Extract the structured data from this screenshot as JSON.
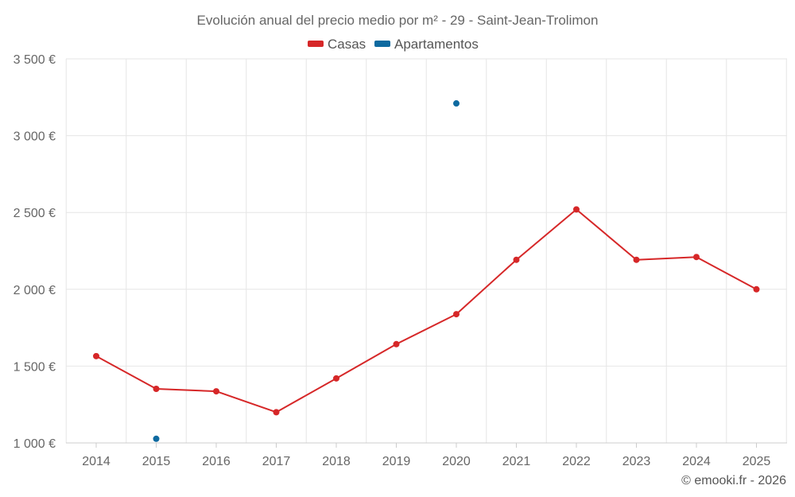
{
  "chart_data": {
    "type": "line",
    "title": "Evolución anual del precio medio por m² - 29 - Saint-Jean-Trolimon",
    "xlabel": "",
    "ylabel": "",
    "categories": [
      "2014",
      "2015",
      "2016",
      "2017",
      "2018",
      "2019",
      "2020",
      "2021",
      "2022",
      "2023",
      "2024",
      "2025"
    ],
    "ylim": [
      1000,
      3500
    ],
    "yticks": [
      1000,
      1500,
      2000,
      2500,
      3000,
      3500
    ],
    "ytick_labels": [
      "1 000 €",
      "1 500 €",
      "2 000 €",
      "2 500 €",
      "3 000 €",
      "3 500 €"
    ],
    "grid": true,
    "legend_position": "top-center",
    "series": [
      {
        "name": "Casas",
        "color": "#d62728",
        "line": true,
        "values": [
          1565,
          1352,
          1336,
          1200,
          1420,
          1643,
          1838,
          2192,
          2520,
          2192,
          2210,
          2000
        ]
      },
      {
        "name": "Apartamentos",
        "color": "#0e6aa0",
        "line": false,
        "values": [
          null,
          1027,
          null,
          null,
          null,
          null,
          3210,
          null,
          null,
          null,
          null,
          null
        ]
      }
    ]
  },
  "credit": "© emooki.fr - 2026"
}
